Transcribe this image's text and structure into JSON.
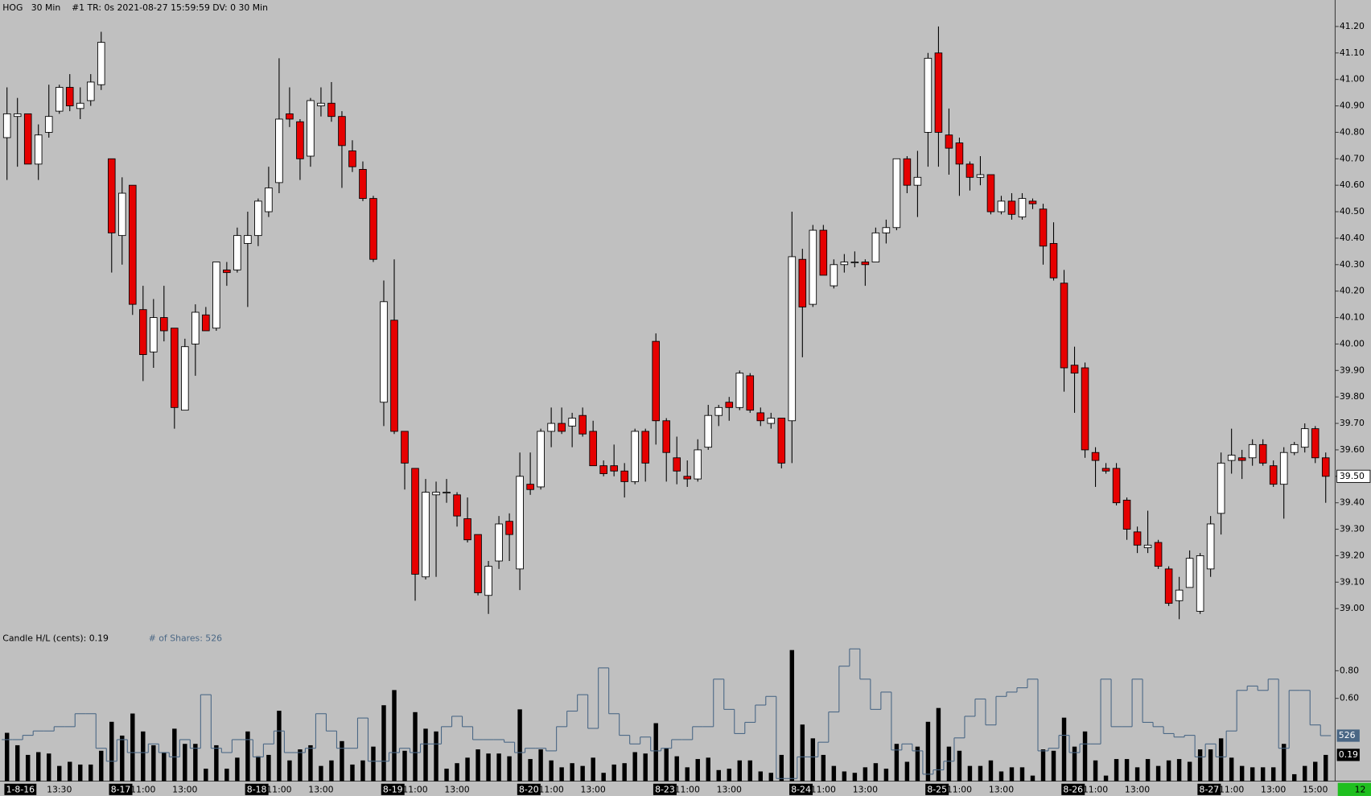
{
  "chart_data": [
    {
      "type": "candlestick",
      "title": "HOG   30 Min    #1 TR: 0s 2021-08-27 15:59:59 DV: 0 30 Min",
      "up_color": "#ffffff",
      "down_color": "#e60000",
      "categories": [
        "1-8-16",
        null,
        null,
        null,
        null,
        "13:30",
        null,
        null,
        null,
        null,
        "8-17",
        null,
        null,
        "11:00",
        null,
        null,
        null,
        "13:00",
        null,
        null,
        null,
        null,
        null,
        "8-18",
        null,
        null,
        "11:00",
        null,
        null,
        null,
        "13:00",
        null,
        null,
        null,
        null,
        null,
        "8-19",
        null,
        null,
        "11:00",
        null,
        null,
        null,
        "13:00",
        null,
        null,
        null,
        null,
        null,
        "8-20",
        null,
        null,
        "11:00",
        null,
        null,
        null,
        "13:00",
        null,
        null,
        null,
        null,
        null,
        "8-23",
        null,
        null,
        "11:00",
        null,
        null,
        null,
        "13:00",
        null,
        null,
        null,
        null,
        null,
        "8-24",
        null,
        null,
        "11:00",
        null,
        null,
        null,
        "13:00",
        null,
        null,
        null,
        null,
        null,
        "8-25",
        null,
        null,
        "11:00",
        null,
        null,
        null,
        "13:00",
        null,
        null,
        null,
        null,
        null,
        "8-26",
        null,
        null,
        "11:00",
        null,
        null,
        null,
        "13:00",
        null,
        null,
        null,
        null,
        null,
        "8-27",
        null,
        null,
        "11:00",
        null,
        null,
        null,
        "13:00",
        null,
        null,
        null,
        "15:00",
        null
      ],
      "open": [
        40.78,
        40.86,
        40.87,
        40.68,
        40.8,
        40.88,
        40.97,
        40.89,
        40.92,
        40.98,
        40.7,
        40.41,
        40.6,
        40.13,
        39.97,
        40.1,
        40.06,
        39.75,
        40.0,
        40.11,
        40.06,
        40.28,
        40.28,
        40.38,
        40.41,
        40.5,
        40.61,
        40.87,
        40.84,
        40.71,
        40.9,
        40.91,
        40.86,
        40.73,
        40.66,
        40.55,
        39.78,
        40.09,
        39.67,
        39.53,
        39.12,
        39.43,
        39.44,
        39.43,
        39.34,
        39.28,
        39.05,
        39.18,
        39.33,
        39.15,
        39.47,
        39.46,
        39.67,
        39.7,
        39.69,
        39.73,
        39.67,
        39.54,
        39.54,
        39.52,
        39.48,
        39.67,
        40.01,
        39.71,
        39.57,
        39.5,
        39.49,
        39.61,
        39.73,
        39.78,
        39.76,
        39.88,
        39.74,
        39.7,
        39.72,
        39.71,
        40.32,
        40.15,
        40.43,
        40.22,
        40.3,
        40.31,
        40.31,
        40.31,
        40.42,
        40.44,
        40.7,
        40.6,
        40.8,
        41.1,
        40.79,
        40.76,
        40.68,
        40.63,
        40.64,
        40.5,
        40.54,
        40.48,
        40.54,
        40.51,
        40.38,
        40.23,
        39.92,
        39.91,
        39.59,
        39.53,
        39.53,
        39.41,
        39.29,
        39.23,
        39.25,
        39.15,
        39.03,
        39.08,
        38.99,
        39.15,
        39.36,
        39.56,
        39.57,
        39.57,
        39.62,
        39.54,
        39.47,
        39.59,
        39.61,
        39.68,
        39.57
      ],
      "high": [
        40.97,
        40.93,
        40.87,
        40.83,
        40.98,
        40.98,
        41.02,
        40.97,
        41.02,
        41.18,
        40.7,
        40.63,
        40.6,
        40.22,
        40.17,
        40.22,
        40.06,
        40.02,
        40.15,
        40.14,
        40.31,
        40.31,
        40.44,
        40.5,
        40.55,
        40.67,
        41.08,
        40.97,
        40.85,
        40.93,
        40.97,
        40.99,
        40.88,
        40.77,
        40.69,
        40.56,
        40.24,
        40.32,
        39.67,
        39.53,
        39.49,
        39.48,
        39.49,
        39.44,
        39.42,
        39.28,
        39.18,
        39.35,
        39.36,
        39.59,
        39.59,
        39.68,
        39.76,
        39.76,
        39.74,
        39.76,
        39.71,
        39.56,
        39.62,
        39.55,
        39.68,
        39.68,
        40.04,
        39.72,
        39.65,
        39.56,
        39.64,
        39.77,
        39.77,
        39.8,
        39.9,
        39.89,
        39.76,
        39.74,
        39.72,
        40.5,
        40.36,
        40.45,
        40.45,
        40.32,
        40.34,
        40.35,
        40.32,
        40.44,
        40.47,
        40.7,
        40.71,
        40.73,
        41.1,
        41.2,
        40.89,
        40.78,
        40.69,
        40.71,
        40.64,
        40.56,
        40.57,
        40.57,
        40.55,
        40.53,
        40.46,
        40.28,
        39.99,
        39.93,
        39.61,
        39.55,
        39.55,
        39.42,
        39.31,
        39.37,
        39.26,
        39.16,
        39.12,
        39.22,
        39.21,
        39.35,
        39.59,
        39.68,
        39.6,
        39.64,
        39.64,
        39.56,
        39.61,
        39.63,
        39.7,
        39.69,
        39.59
      ],
      "low": [
        40.62,
        40.67,
        40.68,
        40.62,
        40.78,
        40.87,
        40.88,
        40.85,
        40.9,
        40.96,
        40.27,
        40.3,
        40.11,
        39.86,
        39.91,
        40.01,
        39.68,
        39.75,
        39.88,
        40.05,
        40.05,
        40.22,
        40.27,
        40.14,
        40.37,
        40.48,
        40.57,
        40.82,
        40.62,
        40.67,
        40.86,
        40.84,
        40.59,
        40.65,
        40.54,
        40.31,
        39.69,
        39.66,
        39.45,
        39.03,
        39.11,
        39.12,
        39.4,
        39.31,
        39.25,
        39.05,
        38.98,
        39.15,
        39.18,
        39.07,
        39.43,
        39.45,
        39.61,
        39.66,
        39.61,
        39.65,
        39.54,
        39.5,
        39.5,
        39.42,
        39.47,
        39.48,
        39.62,
        39.48,
        39.47,
        39.46,
        39.48,
        39.6,
        39.69,
        39.71,
        39.75,
        39.74,
        39.69,
        39.68,
        39.53,
        39.55,
        39.95,
        40.14,
        40.26,
        40.21,
        40.27,
        40.29,
        40.22,
        40.31,
        40.38,
        40.43,
        40.57,
        40.48,
        40.67,
        40.67,
        40.64,
        40.56,
        40.58,
        40.6,
        40.49,
        40.49,
        40.47,
        40.47,
        40.51,
        40.3,
        40.24,
        39.82,
        39.74,
        39.57,
        39.46,
        39.51,
        39.39,
        39.26,
        39.21,
        39.21,
        39.15,
        39.01,
        38.96,
        39.08,
        38.98,
        39.12,
        39.28,
        39.51,
        39.49,
        39.54,
        39.54,
        39.46,
        39.34,
        39.58,
        39.59,
        39.55,
        39.4
      ],
      "close": [
        40.87,
        40.87,
        40.68,
        40.79,
        40.86,
        40.97,
        40.9,
        40.91,
        40.99,
        41.14,
        40.42,
        40.57,
        40.15,
        39.96,
        40.1,
        40.05,
        39.76,
        39.99,
        40.12,
        40.05,
        40.31,
        40.27,
        40.41,
        40.41,
        40.54,
        40.59,
        40.85,
        40.85,
        40.7,
        40.92,
        40.91,
        40.86,
        40.75,
        40.67,
        40.55,
        40.32,
        40.16,
        39.67,
        39.55,
        39.13,
        39.44,
        39.44,
        39.44,
        39.35,
        39.26,
        39.06,
        39.16,
        39.32,
        39.28,
        39.5,
        39.45,
        39.67,
        39.7,
        39.67,
        39.72,
        39.66,
        39.54,
        39.51,
        39.52,
        39.48,
        39.67,
        39.55,
        39.71,
        39.59,
        39.52,
        39.49,
        39.6,
        39.73,
        39.76,
        39.76,
        39.89,
        39.75,
        39.71,
        39.72,
        39.55,
        40.33,
        40.14,
        40.43,
        40.26,
        40.3,
        40.31,
        40.31,
        40.3,
        40.42,
        40.44,
        40.7,
        40.6,
        40.63,
        41.08,
        40.8,
        40.74,
        40.68,
        40.63,
        40.64,
        40.5,
        40.54,
        40.49,
        40.55,
        40.53,
        40.37,
        40.25,
        39.91,
        39.89,
        39.6,
        39.56,
        39.52,
        39.4,
        39.3,
        39.24,
        39.24,
        39.16,
        39.02,
        39.07,
        39.19,
        39.2,
        39.32,
        39.55,
        39.58,
        39.56,
        39.62,
        39.55,
        39.47,
        39.59,
        39.62,
        39.68,
        39.57,
        39.5
      ],
      "ylim": [
        38.92,
        41.3
      ],
      "yticks": [
        {
          "value": 39.0,
          "label": "39.00"
        },
        {
          "value": 39.1,
          "label": "39.10"
        },
        {
          "value": 39.2,
          "label": "39.20"
        },
        {
          "value": 39.3,
          "label": "39.30"
        },
        {
          "value": 39.4,
          "label": "39.40"
        },
        {
          "value": 39.5,
          "label": "39.50"
        },
        {
          "value": 39.6,
          "label": "39.60"
        },
        {
          "value": 39.7,
          "label": "39.70"
        },
        {
          "value": 39.8,
          "label": "39.80"
        },
        {
          "value": 39.9,
          "label": "39.90"
        },
        {
          "value": 40.0,
          "label": "40.00"
        },
        {
          "value": 40.1,
          "label": "40.10"
        },
        {
          "value": 40.2,
          "label": "40.20"
        },
        {
          "value": 40.3,
          "label": "40.30"
        },
        {
          "value": 40.4,
          "label": "40.40"
        },
        {
          "value": 40.5,
          "label": "40.50"
        },
        {
          "value": 40.6,
          "label": "40.60"
        },
        {
          "value": 40.7,
          "label": "40.70"
        },
        {
          "value": 40.8,
          "label": "40.80"
        },
        {
          "value": 40.9,
          "label": "40.90"
        },
        {
          "value": 41.0,
          "label": "41.00"
        },
        {
          "value": 41.1,
          "label": "41.10"
        },
        {
          "value": 41.2,
          "label": "41.20"
        }
      ],
      "last_price": {
        "value": 39.5,
        "label": "39.50"
      }
    },
    {
      "type": "bar",
      "legend_texts": [
        "Candle H/L (cents): 0.19",
        "# of Shares: 526"
      ],
      "series": [
        {
          "color": "#000000",
          "values": [
            0.35,
            0.26,
            0.19,
            0.21,
            0.2,
            0.11,
            0.14,
            0.12,
            0.12,
            0.22,
            0.43,
            0.33,
            0.49,
            0.36,
            0.26,
            0.21,
            0.38,
            0.27,
            0.27,
            0.09,
            0.26,
            0.09,
            0.17,
            0.36,
            0.18,
            0.19,
            0.51,
            0.15,
            0.23,
            0.26,
            0.11,
            0.15,
            0.29,
            0.12,
            0.15,
            0.25,
            0.55,
            0.66,
            0.22,
            0.5,
            0.38,
            0.36,
            0.09,
            0.13,
            0.17,
            0.23,
            0.2,
            0.2,
            0.18,
            0.52,
            0.16,
            0.23,
            0.15,
            0.1,
            0.13,
            0.11,
            0.17,
            0.06,
            0.12,
            0.13,
            0.21,
            0.2,
            0.42,
            0.24,
            0.18,
            0.1,
            0.16,
            0.17,
            0.08,
            0.09,
            0.15,
            0.15,
            0.07,
            0.06,
            0.19,
            0.95,
            0.41,
            0.31,
            0.19,
            0.11,
            0.07,
            0.06,
            0.1,
            0.13,
            0.09,
            0.27,
            0.14,
            0.25,
            0.43,
            0.53,
            0.25,
            0.22,
            0.11,
            0.11,
            0.15,
            0.07,
            0.1,
            0.1,
            0.04,
            0.23,
            0.22,
            0.46,
            0.25,
            0.36,
            0.15,
            0.04,
            0.16,
            0.16,
            0.1,
            0.16,
            0.11,
            0.15,
            0.16,
            0.14,
            0.23,
            0.23,
            0.31,
            0.17,
            0.11,
            0.1,
            0.1,
            0.1,
            0.27,
            0.05,
            0.11,
            0.14,
            0.19
          ]
        },
        {
          "color": "#4a6785",
          "axis": "y2",
          "style": "step",
          "values": [
            480,
            480,
            530,
            580,
            580,
            630,
            630,
            780,
            780,
            380,
            230,
            480,
            330,
            330,
            430,
            330,
            280,
            480,
            380,
            1000,
            380,
            330,
            480,
            480,
            280,
            430,
            580,
            330,
            330,
            380,
            780,
            580,
            380,
            380,
            730,
            230,
            230,
            330,
            380,
            330,
            430,
            430,
            630,
            750,
            630,
            480,
            480,
            480,
            450,
            330,
            380,
            380,
            350,
            630,
            810,
            1000,
            610,
            1310,
            780,
            530,
            430,
            510,
            350,
            380,
            480,
            480,
            630,
            630,
            1180,
            830,
            550,
            680,
            880,
            980,
            30,
            30,
            280,
            280,
            450,
            800,
            1330,
            1530,
            1180,
            830,
            1030,
            360,
            430,
            350,
            80,
            130,
            230,
            500,
            750,
            950,
            650,
            980,
            1030,
            1080,
            1180,
            350,
            380,
            530,
            330,
            430,
            430,
            1180,
            630,
            630,
            1180,
            680,
            630,
            550,
            510,
            530,
            280,
            430,
            280,
            580,
            1050,
            1100,
            1050,
            1180,
            380,
            1050,
            1050,
            650,
            526
          ]
        }
      ],
      "ylim": [
        0,
        1.04
      ],
      "yticks": [
        {
          "value": 0.6,
          "label": "0.60"
        },
        {
          "value": 0.8,
          "label": "0.80"
        }
      ],
      "y2lim": [
        0,
        1660
      ],
      "last_markers": [
        0.19,
        526
      ]
    }
  ],
  "status": "12"
}
